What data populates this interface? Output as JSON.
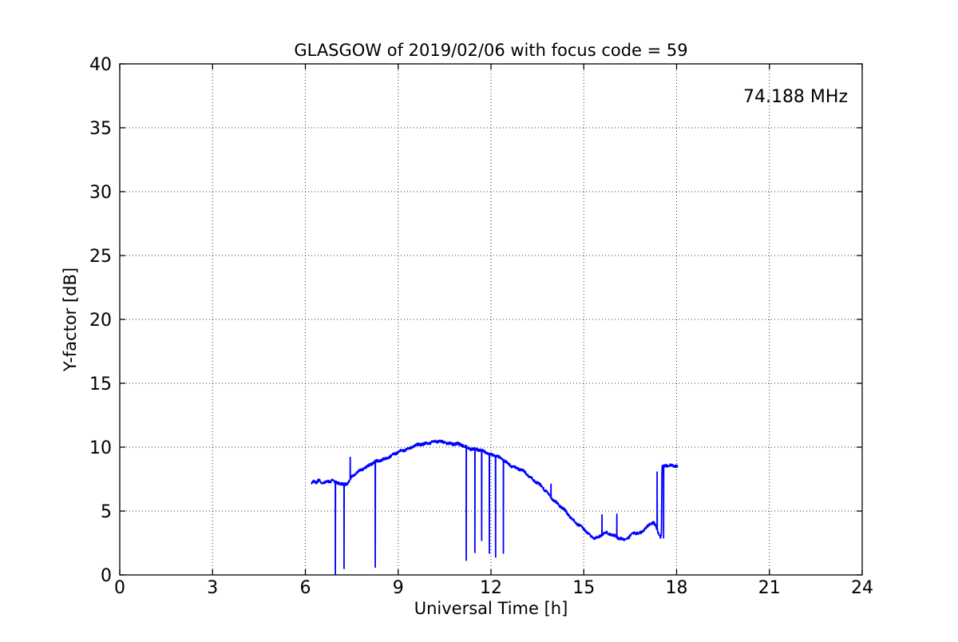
{
  "chart_data": {
    "type": "line",
    "title": "GLASGOW of 2019/02/06 with focus code = 59",
    "xlabel": "Universal Time [h]",
    "ylabel": "Y-factor [dB]",
    "xlim": [
      0,
      24
    ],
    "ylim": [
      0,
      40
    ],
    "xticks": [
      0,
      3,
      6,
      9,
      12,
      15,
      18,
      21,
      24
    ],
    "yticks": [
      0,
      5,
      10,
      15,
      20,
      25,
      30,
      35,
      40
    ],
    "grid": "dotted",
    "legend": "none",
    "annotations": [
      {
        "text": "74.188 MHz",
        "x": 23.55,
        "y": 37.0,
        "color": "#0000ff",
        "align": "right"
      }
    ],
    "series": [
      {
        "name": "Y-factor trace",
        "color": "#0000ff",
        "line_width": 1.8,
        "noise_amplitude_db": 0.1,
        "envelope": [
          [
            6.2,
            7.1
          ],
          [
            6.28,
            7.4
          ],
          [
            6.35,
            7.15
          ],
          [
            6.45,
            7.45
          ],
          [
            6.52,
            7.25
          ],
          [
            6.65,
            7.3
          ],
          [
            6.8,
            7.3
          ],
          [
            6.88,
            7.45
          ],
          [
            6.95,
            7.2
          ],
          [
            7.1,
            7.2
          ],
          [
            7.25,
            7.1
          ],
          [
            7.38,
            7.25
          ],
          [
            7.45,
            7.5
          ],
          [
            7.55,
            7.75
          ],
          [
            7.7,
            8.05
          ],
          [
            7.9,
            8.4
          ],
          [
            8.1,
            8.65
          ],
          [
            8.3,
            8.85
          ],
          [
            8.5,
            9.05
          ],
          [
            8.7,
            9.25
          ],
          [
            8.9,
            9.45
          ],
          [
            9.1,
            9.7
          ],
          [
            9.3,
            9.9
          ],
          [
            9.5,
            10.05
          ],
          [
            9.7,
            10.18
          ],
          [
            9.9,
            10.3
          ],
          [
            10.1,
            10.42
          ],
          [
            10.3,
            10.42
          ],
          [
            10.5,
            10.38
          ],
          [
            10.7,
            10.3
          ],
          [
            10.9,
            10.22
          ],
          [
            11.1,
            10.1
          ],
          [
            11.3,
            9.95
          ],
          [
            11.5,
            9.82
          ],
          [
            11.7,
            9.7
          ],
          [
            11.9,
            9.55
          ],
          [
            12.1,
            9.38
          ],
          [
            12.3,
            9.12
          ],
          [
            12.5,
            8.82
          ],
          [
            12.7,
            8.52
          ],
          [
            12.9,
            8.28
          ],
          [
            13.1,
            8.0
          ],
          [
            13.3,
            7.62
          ],
          [
            13.5,
            7.22
          ],
          [
            13.7,
            6.72
          ],
          [
            13.9,
            6.22
          ],
          [
            14.1,
            5.72
          ],
          [
            14.3,
            5.22
          ],
          [
            14.5,
            4.72
          ],
          [
            14.7,
            4.22
          ],
          [
            14.9,
            3.8
          ],
          [
            15.1,
            3.3
          ],
          [
            15.25,
            3.0
          ],
          [
            15.4,
            2.9
          ],
          [
            15.55,
            3.1
          ],
          [
            15.7,
            3.25
          ],
          [
            15.85,
            3.2
          ],
          [
            16.0,
            3.1
          ],
          [
            16.15,
            2.9
          ],
          [
            16.3,
            2.75
          ],
          [
            16.45,
            2.85
          ],
          [
            16.6,
            3.35
          ],
          [
            16.75,
            3.28
          ],
          [
            16.9,
            3.4
          ],
          [
            17.05,
            3.7
          ],
          [
            17.15,
            4.0
          ],
          [
            17.25,
            4.1
          ],
          [
            17.33,
            3.85
          ],
          [
            17.42,
            3.3
          ],
          [
            17.48,
            3.0
          ],
          [
            17.51,
            3.2
          ],
          [
            17.53,
            8.45
          ],
          [
            17.65,
            8.55
          ],
          [
            17.8,
            8.5
          ],
          [
            17.95,
            8.55
          ],
          [
            18.03,
            8.6
          ]
        ],
        "spikes_down": [
          [
            6.97,
            0.05
          ],
          [
            7.25,
            0.5
          ],
          [
            8.26,
            0.6
          ],
          [
            11.2,
            1.15
          ],
          [
            11.48,
            1.75
          ],
          [
            11.7,
            2.7
          ],
          [
            11.95,
            1.7
          ],
          [
            12.15,
            1.4
          ],
          [
            12.4,
            1.7
          ],
          [
            17.58,
            2.9
          ]
        ],
        "spikes_up": [
          [
            7.45,
            9.2
          ],
          [
            13.94,
            7.1
          ],
          [
            15.59,
            4.7
          ],
          [
            16.07,
            4.75
          ],
          [
            17.37,
            8.05
          ]
        ]
      }
    ]
  }
}
